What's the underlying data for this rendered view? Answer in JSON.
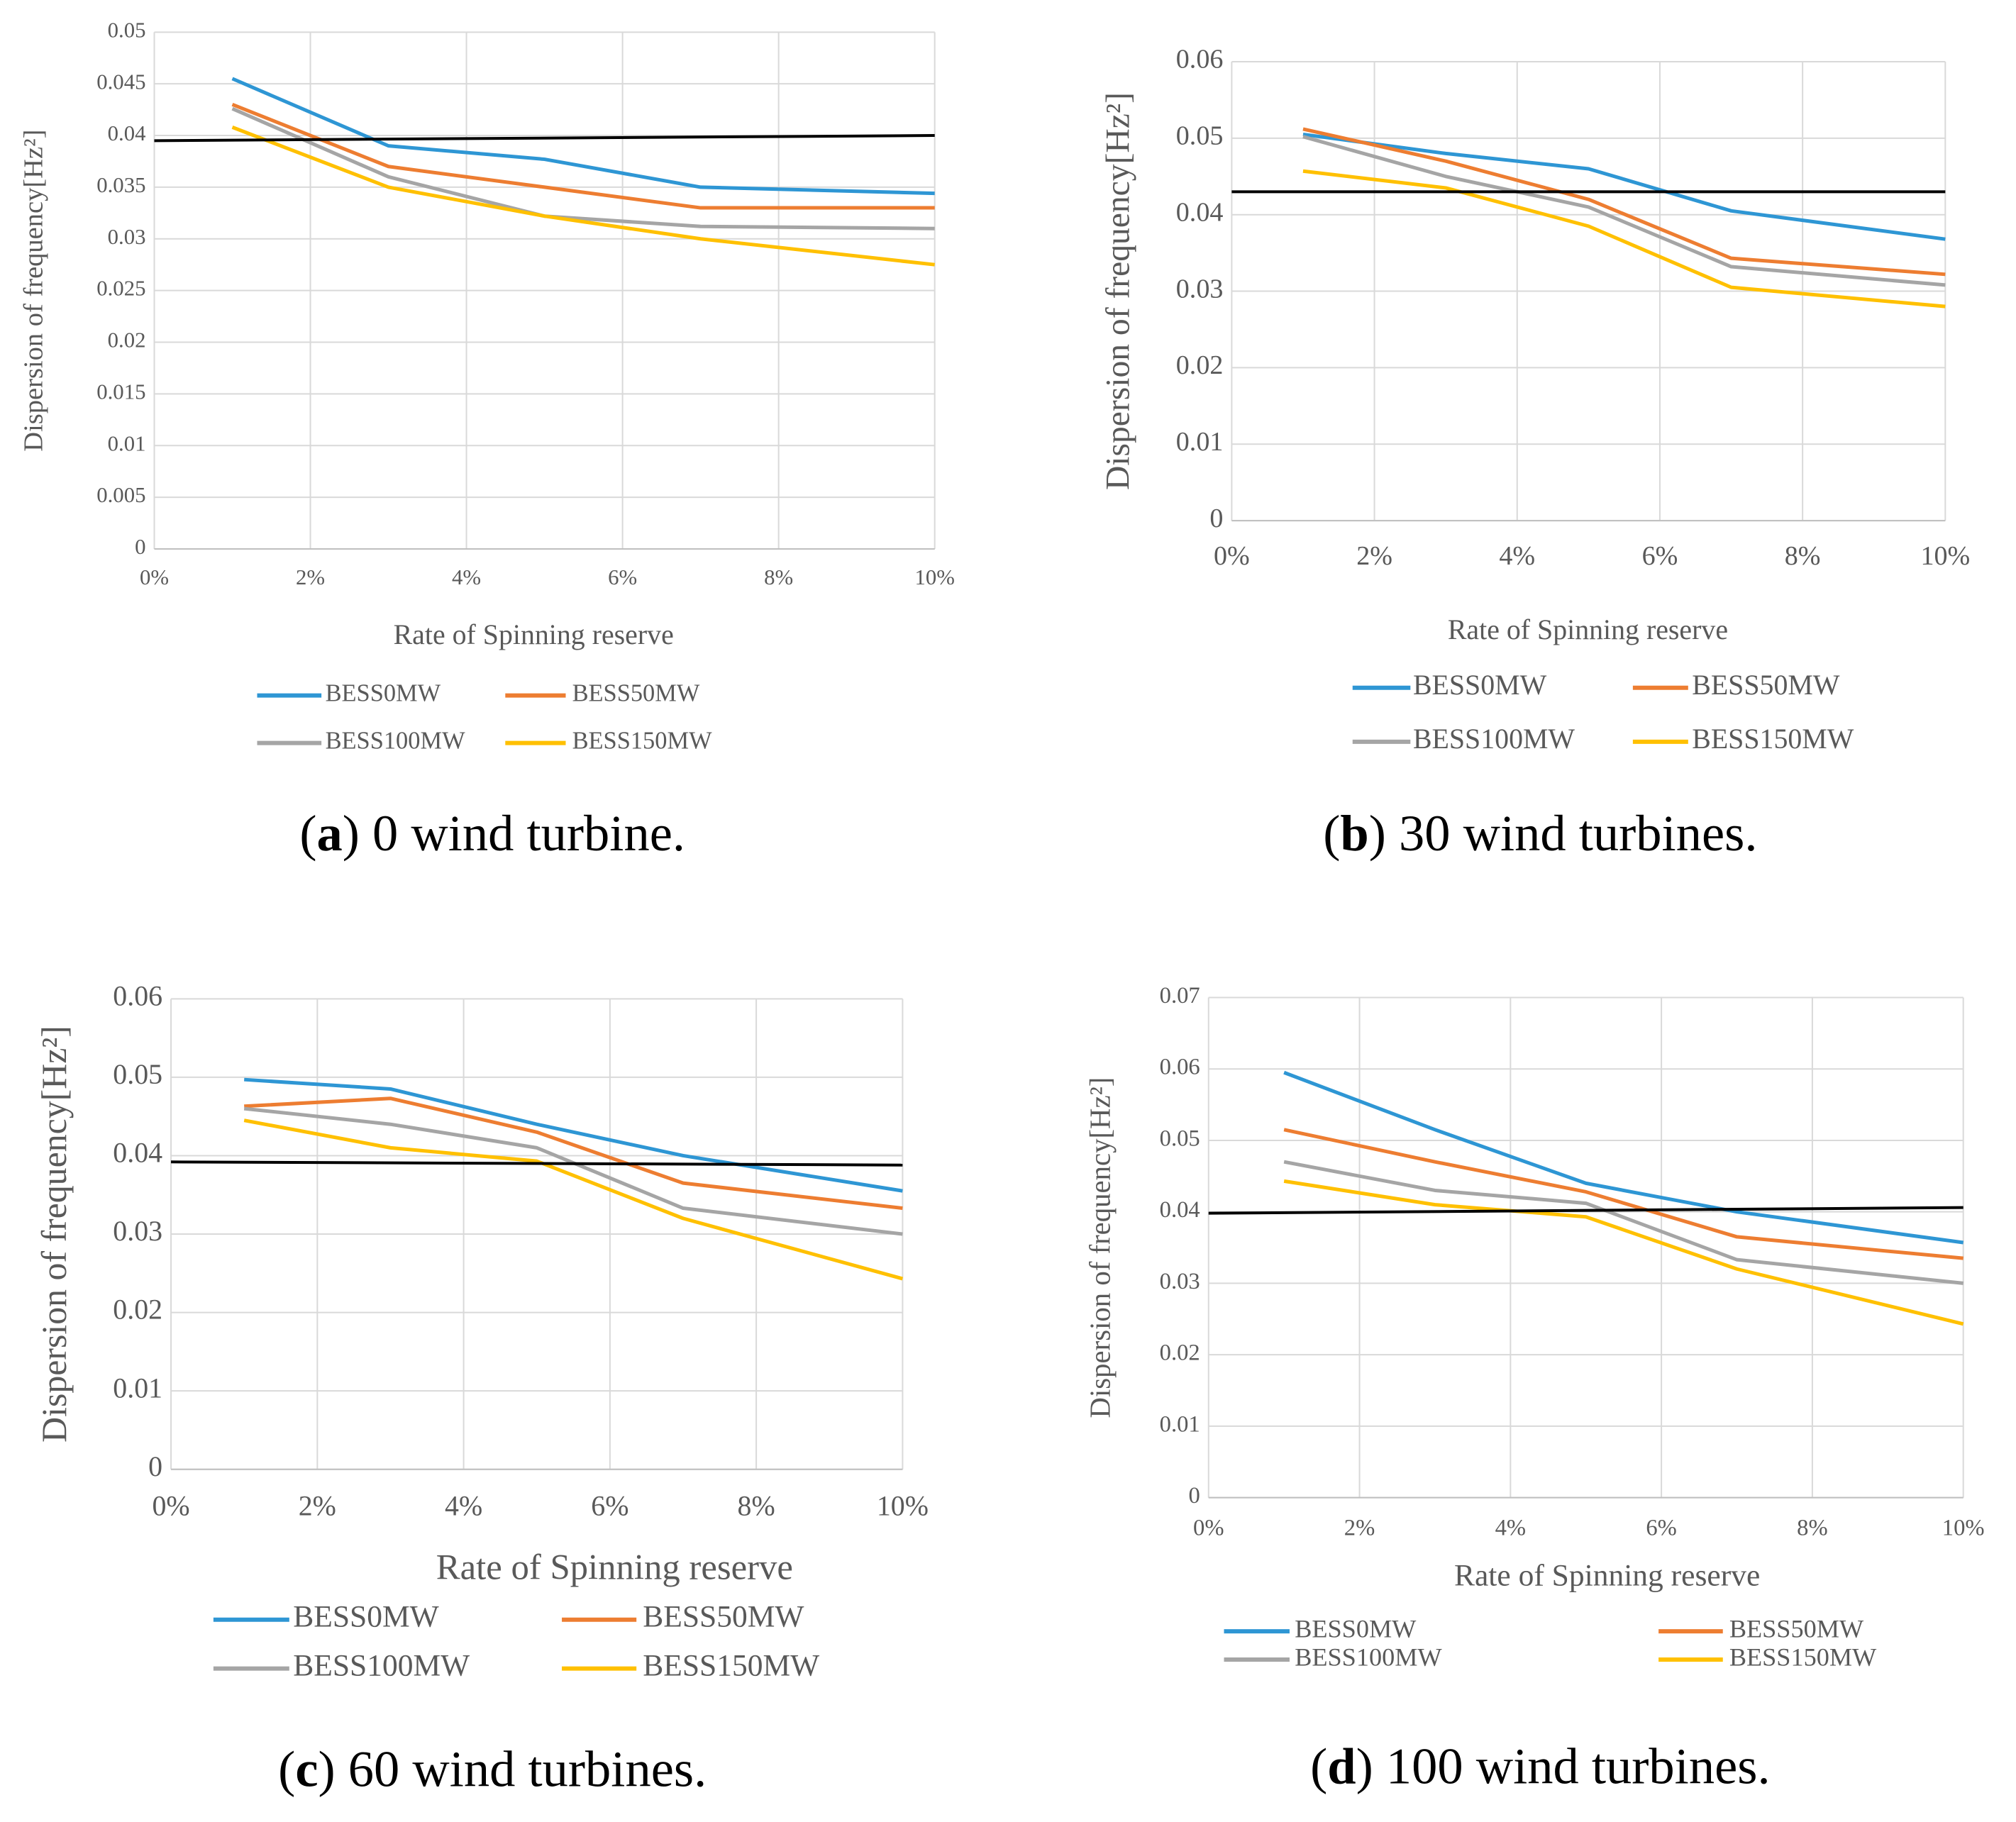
{
  "chart_data": [
    {
      "type": "line",
      "x_label": "Rate of Spinning reserve",
      "y_label": "Dispersion of frequency[Hz²]",
      "caption": {
        "open": "(",
        "label": "a",
        "text": ") 0 wind turbine."
      },
      "x": [
        1,
        3,
        5,
        7,
        10
      ],
      "xlim": [
        0,
        10
      ],
      "xticks": [
        {
          "value": 0,
          "label": "0%"
        },
        {
          "value": 2,
          "label": "2%"
        },
        {
          "value": 4,
          "label": "4%"
        },
        {
          "value": 6,
          "label": "6%"
        },
        {
          "value": 8,
          "label": "8%"
        },
        {
          "value": 10,
          "label": "10%"
        }
      ],
      "ylim": [
        0,
        0.05
      ],
      "yticks": [
        0,
        0.005,
        0.01,
        0.015,
        0.02,
        0.025,
        0.03,
        0.035,
        0.04,
        0.045,
        0.05
      ],
      "grid": true,
      "series": [
        {
          "name": "BESS0MW",
          "color": "#2e96d4",
          "values": [
            0.0455,
            0.039,
            0.0377,
            0.035,
            0.0344
          ]
        },
        {
          "name": "BESS50MW",
          "color": "#ed7d31",
          "values": [
            0.043,
            0.037,
            0.035,
            0.033,
            0.033
          ]
        },
        {
          "name": "BESS100MW",
          "color": "#a5a5a5",
          "values": [
            0.0426,
            0.036,
            0.0322,
            0.0312,
            0.031
          ]
        },
        {
          "name": "BESS150MW",
          "color": "#ffc000",
          "values": [
            0.0408,
            0.035,
            0.0322,
            0.03,
            0.0275
          ]
        }
      ],
      "reference_line": {
        "x": [
          0,
          10
        ],
        "values": [
          0.0395,
          0.04
        ],
        "color": "#000000"
      }
    },
    {
      "type": "line",
      "x_label": "Rate of Spinning reserve",
      "y_label": "Dispersion of frequency[Hz²]",
      "caption": {
        "open": "(",
        "label": "b",
        "text": ") 30 wind turbines."
      },
      "x": [
        1,
        3,
        5,
        7,
        10
      ],
      "xlim": [
        0,
        10
      ],
      "xticks": [
        {
          "value": 0,
          "label": "0%"
        },
        {
          "value": 2,
          "label": "2%"
        },
        {
          "value": 4,
          "label": "4%"
        },
        {
          "value": 6,
          "label": "6%"
        },
        {
          "value": 8,
          "label": "8%"
        },
        {
          "value": 10,
          "label": "10%"
        }
      ],
      "ylim": [
        0,
        0.06
      ],
      "yticks": [
        0,
        0.01,
        0.02,
        0.03,
        0.04,
        0.05,
        0.06
      ],
      "grid": true,
      "series": [
        {
          "name": "BESS0MW",
          "color": "#2e96d4",
          "values": [
            0.0505,
            0.048,
            0.046,
            0.0405,
            0.0368
          ]
        },
        {
          "name": "BESS50MW",
          "color": "#ed7d31",
          "values": [
            0.0512,
            0.047,
            0.042,
            0.0343,
            0.0322
          ]
        },
        {
          "name": "BESS100MW",
          "color": "#a5a5a5",
          "values": [
            0.0502,
            0.045,
            0.041,
            0.0332,
            0.0308
          ]
        },
        {
          "name": "BESS150MW",
          "color": "#ffc000",
          "values": [
            0.0457,
            0.0435,
            0.0385,
            0.0305,
            0.028
          ]
        }
      ],
      "reference_line": {
        "x": [
          0,
          10
        ],
        "values": [
          0.043,
          0.043
        ],
        "color": "#000000"
      }
    },
    {
      "type": "line",
      "x_label": "Rate of Spinning reserve",
      "y_label": "Dispersion of frequency[Hz²]",
      "caption": {
        "open": "(",
        "label": "c",
        "text": ") 60 wind turbines."
      },
      "x": [
        1,
        3,
        5,
        7,
        10
      ],
      "xlim": [
        0,
        10
      ],
      "xticks": [
        {
          "value": 0,
          "label": "0%"
        },
        {
          "value": 2,
          "label": "2%"
        },
        {
          "value": 4,
          "label": "4%"
        },
        {
          "value": 6,
          "label": "6%"
        },
        {
          "value": 8,
          "label": "8%"
        },
        {
          "value": 10,
          "label": "10%"
        }
      ],
      "ylim": [
        0,
        0.06
      ],
      "yticks": [
        0,
        0.01,
        0.02,
        0.03,
        0.04,
        0.05,
        0.06
      ],
      "grid": true,
      "series": [
        {
          "name": "BESS0MW",
          "color": "#2e96d4",
          "values": [
            0.0497,
            0.0485,
            0.044,
            0.04,
            0.0355
          ]
        },
        {
          "name": "BESS50MW",
          "color": "#ed7d31",
          "values": [
            0.0463,
            0.0473,
            0.043,
            0.0365,
            0.0333
          ]
        },
        {
          "name": "BESS100MW",
          "color": "#a5a5a5",
          "values": [
            0.046,
            0.044,
            0.041,
            0.0333,
            0.03
          ]
        },
        {
          "name": "BESS150MW",
          "color": "#ffc000",
          "values": [
            0.0445,
            0.041,
            0.0393,
            0.032,
            0.0243
          ]
        }
      ],
      "reference_line": {
        "x": [
          0,
          10
        ],
        "values": [
          0.0392,
          0.0388
        ],
        "color": "#000000"
      }
    },
    {
      "type": "line",
      "x_label": "Rate of Spinning reserve",
      "y_label": "Dispersion of frequency[Hz²]",
      "caption": {
        "open": "(",
        "label": "d",
        "text": ") 100 wind turbines."
      },
      "x": [
        1,
        3,
        5,
        7,
        10
      ],
      "xlim": [
        0,
        10
      ],
      "xticks": [
        {
          "value": 0,
          "label": "0%"
        },
        {
          "value": 2,
          "label": "2%"
        },
        {
          "value": 4,
          "label": "4%"
        },
        {
          "value": 6,
          "label": "6%"
        },
        {
          "value": 8,
          "label": "8%"
        },
        {
          "value": 10,
          "label": "10%"
        }
      ],
      "ylim": [
        0,
        0.07
      ],
      "yticks": [
        0,
        0.01,
        0.02,
        0.03,
        0.04,
        0.05,
        0.06,
        0.07
      ],
      "grid": true,
      "series": [
        {
          "name": "BESS0MW",
          "color": "#2e96d4",
          "values": [
            0.0595,
            0.0515,
            0.044,
            0.04,
            0.0357
          ]
        },
        {
          "name": "BESS50MW",
          "color": "#ed7d31",
          "values": [
            0.0515,
            0.047,
            0.0428,
            0.0365,
            0.0335
          ]
        },
        {
          "name": "BESS100MW",
          "color": "#a5a5a5",
          "values": [
            0.047,
            0.043,
            0.0412,
            0.0333,
            0.03
          ]
        },
        {
          "name": "BESS150MW",
          "color": "#ffc000",
          "values": [
            0.0443,
            0.041,
            0.0393,
            0.032,
            0.0243
          ]
        }
      ],
      "reference_line": {
        "x": [
          0,
          10
        ],
        "values": [
          0.0398,
          0.0406
        ],
        "color": "#000000"
      }
    }
  ]
}
